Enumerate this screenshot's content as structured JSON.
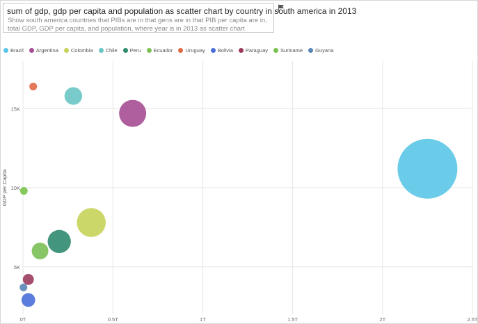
{
  "query": {
    "text": "sum of gdp, gdp per capita and population as scatter chart by country in south america in 2013",
    "hint": "Show south america countries that PIBs are in that gens are in that PIB per capita are in, total GDP, GDP per capita, and population, where year is in 2013 as scatter chart"
  },
  "icons": {
    "flag": "flag-icon"
  },
  "colors": {
    "grid": "#e6e6e6"
  },
  "chart_data": {
    "type": "scatter",
    "ylabel": "GDP per Capita",
    "xlabel": "",
    "xlim": [
      0,
      2500000000000
    ],
    "ylim": [
      2000,
      18000
    ],
    "x_ticks": [
      0,
      500000000000,
      1000000000000,
      1500000000000,
      2000000000000,
      2500000000000
    ],
    "x_tick_labels": [
      "0T",
      "0.5T",
      "1T",
      "1.5T",
      "2T",
      "2.5T"
    ],
    "y_ticks": [
      5000,
      10000,
      15000
    ],
    "y_tick_labels": [
      "5K",
      "10K",
      "15K"
    ],
    "size_by": "population",
    "series": [
      {
        "name": "Brazil",
        "color": "#5bc6e8",
        "x": 2250000000000,
        "y": 11200,
        "population": 202000000
      },
      {
        "name": "Argentina",
        "color": "#a64d93",
        "x": 610000000000,
        "y": 14700,
        "population": 41400000
      },
      {
        "name": "Colombia",
        "color": "#c6d35a",
        "x": 380000000000,
        "y": 7800,
        "population": 47300000
      },
      {
        "name": "Chile",
        "color": "#6ac5c5",
        "x": 280000000000,
        "y": 15800,
        "population": 17600000
      },
      {
        "name": "Peru",
        "color": "#2f8a6f",
        "x": 202000000000,
        "y": 6600,
        "population": 30400000
      },
      {
        "name": "Ecuador",
        "color": "#7bbf55",
        "x": 95000000000,
        "y": 6000,
        "population": 15700000
      },
      {
        "name": "Uruguay",
        "color": "#e06a46",
        "x": 57000000000,
        "y": 16400,
        "population": 3400000
      },
      {
        "name": "Bolivia",
        "color": "#4a6fd9",
        "x": 30000000000,
        "y": 2900,
        "population": 10600000
      },
      {
        "name": "Paraguay",
        "color": "#9b3a5c",
        "x": 30000000000,
        "y": 4200,
        "population": 6800000
      },
      {
        "name": "Suriname",
        "color": "#78c34d",
        "x": 5000000000,
        "y": 9800,
        "population": 540000
      },
      {
        "name": "Guyana",
        "color": "#5a86b5",
        "x": 3000000000,
        "y": 3700,
        "population": 800000
      }
    ]
  }
}
